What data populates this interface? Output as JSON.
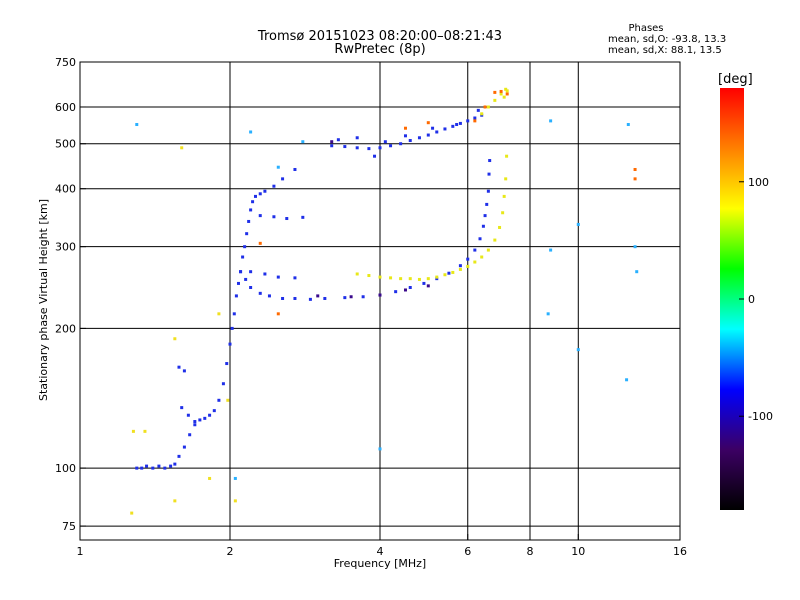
{
  "chart_data": {
    "type": "scatter",
    "title": "Tromsø 20151023 08:20:00–08:21:43",
    "subtitle": "RwPretec (8p)",
    "stats": {
      "heading": "Phases",
      "line_o": "mean, sd,O: -93.8, 13.3",
      "line_x": "mean, sd,X: 88.1, 13.5"
    },
    "xlabel": "Frequency [MHz]",
    "ylabel": "Stationary phase Virtual Height [km]",
    "x_scale": "log",
    "y_scale": "log",
    "xlim": [
      1,
      16
    ],
    "ylim": [
      70,
      750
    ],
    "x_ticks": [
      1,
      2,
      4,
      6,
      8,
      10,
      16
    ],
    "y_ticks": [
      75,
      100,
      200,
      300,
      400,
      500,
      600,
      750
    ],
    "grid": true,
    "colorbar": {
      "label": "[deg]",
      "min": -180,
      "max": 180,
      "ticks": [
        100,
        0,
        -100
      ],
      "stops": [
        "#000000",
        "#3c0064",
        "#0000ff",
        "#00ffff",
        "#00ff00",
        "#ffff00",
        "#ff8000",
        "#ff0000"
      ]
    },
    "series": [
      {
        "phase": -95,
        "color": "#1f2fe8",
        "points": [
          [
            1.3,
            100
          ],
          [
            1.33,
            100
          ],
          [
            1.36,
            101
          ],
          [
            1.4,
            100
          ],
          [
            1.44,
            101
          ],
          [
            1.48,
            100
          ],
          [
            1.52,
            101
          ],
          [
            1.55,
            102
          ],
          [
            1.58,
            106
          ],
          [
            1.62,
            111
          ],
          [
            1.66,
            118
          ],
          [
            1.7,
            124
          ],
          [
            1.74,
            127
          ],
          [
            1.78,
            128
          ],
          [
            1.82,
            130
          ],
          [
            1.86,
            133
          ],
          [
            1.9,
            140
          ],
          [
            1.94,
            152
          ],
          [
            1.97,
            168
          ],
          [
            2.0,
            185
          ],
          [
            2.02,
            200
          ],
          [
            2.04,
            215
          ],
          [
            2.06,
            235
          ],
          [
            2.08,
            250
          ],
          [
            2.1,
            265
          ],
          [
            2.12,
            285
          ],
          [
            2.14,
            300
          ],
          [
            2.16,
            320
          ],
          [
            2.18,
            340
          ],
          [
            2.2,
            360
          ],
          [
            2.22,
            375
          ],
          [
            2.25,
            385
          ],
          [
            2.3,
            390
          ],
          [
            2.35,
            395
          ],
          [
            2.45,
            405
          ],
          [
            2.55,
            420
          ],
          [
            2.7,
            440
          ]
        ]
      },
      {
        "phase": -95,
        "color": "#1f2fe8",
        "points": [
          [
            2.1,
            265
          ],
          [
            2.15,
            255
          ],
          [
            2.2,
            245
          ],
          [
            2.3,
            238
          ],
          [
            2.4,
            235
          ],
          [
            2.55,
            232
          ],
          [
            2.7,
            232
          ],
          [
            2.9,
            231
          ],
          [
            3.1,
            232
          ],
          [
            3.4,
            233
          ],
          [
            3.7,
            234
          ],
          [
            4.0,
            236
          ],
          [
            4.3,
            240
          ],
          [
            4.6,
            245
          ],
          [
            4.9,
            250
          ],
          [
            5.2,
            256
          ],
          [
            5.5,
            263
          ],
          [
            5.8,
            273
          ],
          [
            6.0,
            282
          ],
          [
            6.2,
            295
          ],
          [
            6.35,
            312
          ],
          [
            6.45,
            332
          ],
          [
            6.5,
            350
          ],
          [
            6.55,
            370
          ],
          [
            6.6,
            395
          ],
          [
            6.62,
            430
          ],
          [
            6.64,
            460
          ]
        ]
      },
      {
        "phase": -95,
        "color": "#1f2fe8",
        "points": [
          [
            2.2,
            265
          ],
          [
            2.35,
            262
          ],
          [
            2.5,
            258
          ],
          [
            2.7,
            257
          ],
          [
            2.3,
            350
          ],
          [
            2.45,
            348
          ],
          [
            2.6,
            345
          ],
          [
            2.8,
            347
          ],
          [
            1.6,
            135
          ],
          [
            1.65,
            130
          ],
          [
            1.7,
            126
          ],
          [
            1.58,
            165
          ],
          [
            1.62,
            162
          ]
        ]
      },
      {
        "phase": -95,
        "color": "#1f2fe8",
        "points": [
          [
            3.2,
            495
          ],
          [
            3.4,
            493
          ],
          [
            3.6,
            490
          ],
          [
            3.8,
            488
          ],
          [
            4.0,
            490
          ],
          [
            4.2,
            495
          ],
          [
            4.4,
            500
          ],
          [
            4.6,
            508
          ],
          [
            4.8,
            515
          ],
          [
            5.0,
            522
          ],
          [
            5.2,
            530
          ],
          [
            5.4,
            538
          ],
          [
            5.6,
            545
          ],
          [
            5.8,
            553
          ],
          [
            6.0,
            560
          ],
          [
            6.2,
            568
          ],
          [
            6.4,
            576
          ],
          [
            3.3,
            510
          ],
          [
            3.6,
            515
          ],
          [
            3.9,
            470
          ],
          [
            4.1,
            505
          ],
          [
            4.5,
            520
          ],
          [
            5.1,
            540
          ],
          [
            5.7,
            550
          ],
          [
            6.3,
            590
          ]
        ]
      },
      {
        "phase": 95,
        "color": "#e8e818",
        "points": [
          [
            3.6,
            262
          ],
          [
            3.8,
            260
          ],
          [
            4.0,
            258
          ],
          [
            4.2,
            257
          ],
          [
            4.4,
            256
          ],
          [
            4.6,
            256
          ],
          [
            4.8,
            255
          ],
          [
            5.0,
            256
          ],
          [
            5.2,
            258
          ],
          [
            5.4,
            261
          ],
          [
            5.6,
            264
          ],
          [
            5.8,
            268
          ],
          [
            6.0,
            272
          ],
          [
            6.2,
            278
          ],
          [
            6.4,
            285
          ],
          [
            6.6,
            295
          ],
          [
            6.8,
            310
          ],
          [
            6.95,
            330
          ],
          [
            7.05,
            355
          ],
          [
            7.1,
            385
          ],
          [
            7.15,
            420
          ],
          [
            7.18,
            470
          ]
        ]
      },
      {
        "phase": 95,
        "color": "#e8e818",
        "points": [
          [
            6.4,
            580
          ],
          [
            6.6,
            600
          ],
          [
            6.8,
            620
          ],
          [
            7.0,
            640
          ],
          [
            7.15,
            655
          ],
          [
            7.2,
            650
          ],
          [
            7.1,
            630
          ]
        ]
      },
      {
        "phase": 150,
        "color": "#ff6a00",
        "points": [
          [
            6.2,
            560
          ],
          [
            6.5,
            600
          ],
          [
            6.8,
            645
          ],
          [
            7.0,
            648
          ],
          [
            7.2,
            640
          ],
          [
            4.5,
            540
          ],
          [
            5.0,
            555
          ],
          [
            2.3,
            305
          ],
          [
            2.5,
            215
          ],
          [
            13.0,
            440
          ],
          [
            13.0,
            420
          ]
        ]
      },
      {
        "phase": -140,
        "color": "#3a0a8c",
        "points": [
          [
            3.0,
            235
          ],
          [
            3.5,
            234
          ],
          [
            4.0,
            236
          ],
          [
            4.5,
            242
          ],
          [
            5.0,
            247
          ],
          [
            3.2,
            505
          ]
        ]
      },
      {
        "phase": -30,
        "color": "#29b0ff",
        "points": [
          [
            1.3,
            550
          ],
          [
            2.2,
            530
          ],
          [
            2.5,
            445
          ],
          [
            2.8,
            505
          ],
          [
            4.0,
            110
          ],
          [
            8.8,
            560
          ],
          [
            8.8,
            295
          ],
          [
            8.7,
            215
          ],
          [
            10.0,
            335
          ],
          [
            10.0,
            180
          ],
          [
            12.6,
            550
          ],
          [
            13.0,
            300
          ],
          [
            13.1,
            265
          ],
          [
            12.5,
            155
          ],
          [
            2.05,
            95
          ]
        ]
      },
      {
        "phase": 105,
        "color": "#f0e020",
        "points": [
          [
            1.27,
            80
          ],
          [
            1.28,
            120
          ],
          [
            1.35,
            120
          ],
          [
            1.55,
            190
          ],
          [
            1.55,
            85
          ],
          [
            1.6,
            490
          ],
          [
            1.82,
            95
          ],
          [
            1.9,
            215
          ],
          [
            1.98,
            140
          ],
          [
            2.05,
            85
          ]
        ]
      }
    ]
  }
}
